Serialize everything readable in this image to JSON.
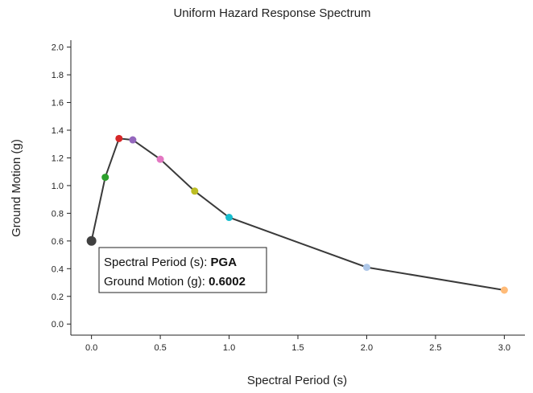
{
  "chart_data": {
    "type": "line",
    "title": "Uniform Hazard Response Spectrum",
    "xlabel": "Spectral Period (s)",
    "ylabel": "Ground Motion (g)",
    "xlim": [
      -0.15,
      3.15
    ],
    "ylim": [
      -0.08,
      2.05
    ],
    "x_ticks": [
      0.0,
      0.5,
      1.0,
      1.5,
      2.0,
      2.5,
      3.0
    ],
    "x_tick_labels": [
      "0.0",
      "0.5",
      "1.0",
      "1.5",
      "2.0",
      "2.5",
      "3.0"
    ],
    "y_ticks": [
      0.0,
      0.2,
      0.4,
      0.6,
      0.8,
      1.0,
      1.2,
      1.4,
      1.6,
      1.8,
      2.0
    ],
    "y_tick_labels": [
      "0.0",
      "0.2",
      "0.4",
      "0.6",
      "0.8",
      "1.0",
      "1.2",
      "1.4",
      "1.6",
      "1.8",
      "2.0"
    ],
    "grid": false,
    "series": [
      {
        "line_color": "#3a3a3a",
        "points": [
          {
            "x": 0.0,
            "y": 0.6002,
            "color": "#404040",
            "highlighted": true
          },
          {
            "x": 0.1,
            "y": 1.06,
            "color": "#2ca02c"
          },
          {
            "x": 0.2,
            "y": 1.34,
            "color": "#d62728"
          },
          {
            "x": 0.3,
            "y": 1.33,
            "color": "#9467bd"
          },
          {
            "x": 0.5,
            "y": 1.19,
            "color": "#e377c2"
          },
          {
            "x": 0.75,
            "y": 0.96,
            "color": "#bcbd22"
          },
          {
            "x": 1.0,
            "y": 0.77,
            "color": "#17becf"
          },
          {
            "x": 2.0,
            "y": 0.41,
            "color": "#aec7e8"
          },
          {
            "x": 3.0,
            "y": 0.245,
            "color": "#ffbb78"
          }
        ]
      }
    ],
    "tooltip": {
      "period_label": "Spectral Period (s): ",
      "period_value": "PGA",
      "motion_label": "Ground Motion (g): ",
      "motion_value": "0.6002"
    }
  }
}
